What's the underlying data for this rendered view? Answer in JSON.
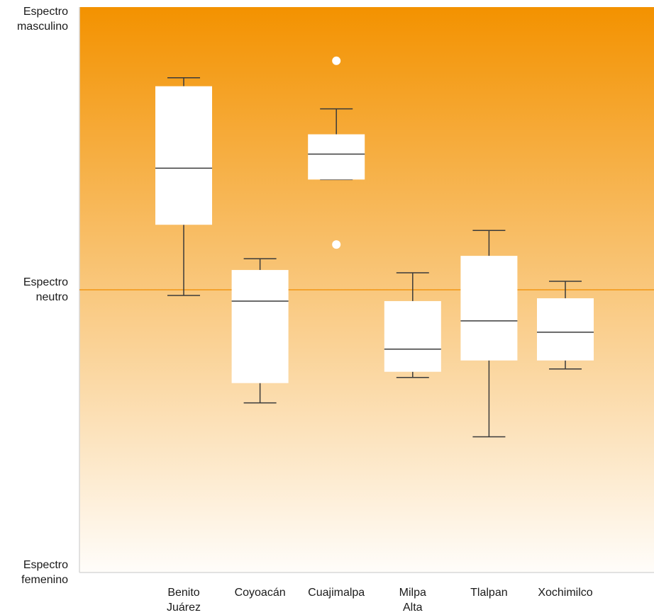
{
  "chart_data": {
    "type": "boxplot",
    "title": "",
    "xlabel": "",
    "ylabel": "",
    "ylim": [
      -1,
      1
    ],
    "y_tick_labels": [
      {
        "value": 1,
        "lines": [
          "Espectro",
          "masculino"
        ]
      },
      {
        "value": 0,
        "lines": [
          "Espectro",
          "neutro"
        ]
      },
      {
        "value": -1,
        "lines": [
          "Espectro",
          "femenino"
        ]
      }
    ],
    "reference_line": {
      "value": 0,
      "color": "#f28c00"
    },
    "categories": [
      {
        "lines": [
          "Benito",
          "Juárez"
        ]
      },
      {
        "lines": [
          "Coyoacán"
        ]
      },
      {
        "lines": [
          "Cuajimalpa"
        ]
      },
      {
        "lines": [
          "Milpa",
          "Alta"
        ]
      },
      {
        "lines": [
          "Tlalpan"
        ]
      },
      {
        "lines": [
          "Xochimilco"
        ]
      }
    ],
    "boxes": [
      {
        "whisker_low": -0.02,
        "q1": 0.23,
        "median": 0.43,
        "q3": 0.72,
        "whisker_high": 0.75,
        "outliers": []
      },
      {
        "whisker_low": -0.4,
        "q1": -0.33,
        "median": -0.04,
        "q3": 0.07,
        "whisker_high": 0.11,
        "outliers": []
      },
      {
        "whisker_low": 0.39,
        "q1": 0.39,
        "median": 0.48,
        "q3": 0.55,
        "whisker_high": 0.64,
        "outliers": [
          0.81,
          0.16
        ]
      },
      {
        "whisker_low": -0.31,
        "q1": -0.29,
        "median": -0.21,
        "q3": -0.04,
        "whisker_high": 0.06,
        "outliers": []
      },
      {
        "whisker_low": -0.52,
        "q1": -0.25,
        "median": -0.11,
        "q3": 0.12,
        "whisker_high": 0.21,
        "outliers": []
      },
      {
        "whisker_low": -0.28,
        "q1": -0.25,
        "median": -0.15,
        "q3": -0.03,
        "whisker_high": 0.03,
        "outliers": []
      }
    ],
    "colors": {
      "gradient_top": "#f39200",
      "gradient_bottom": "#fffdfa",
      "box_fill": "#ffffff",
      "whisker": "#3a3a3a",
      "outlier": "#ffffff",
      "axis": "#d8d8d8"
    },
    "grid": false,
    "legend": "none"
  }
}
